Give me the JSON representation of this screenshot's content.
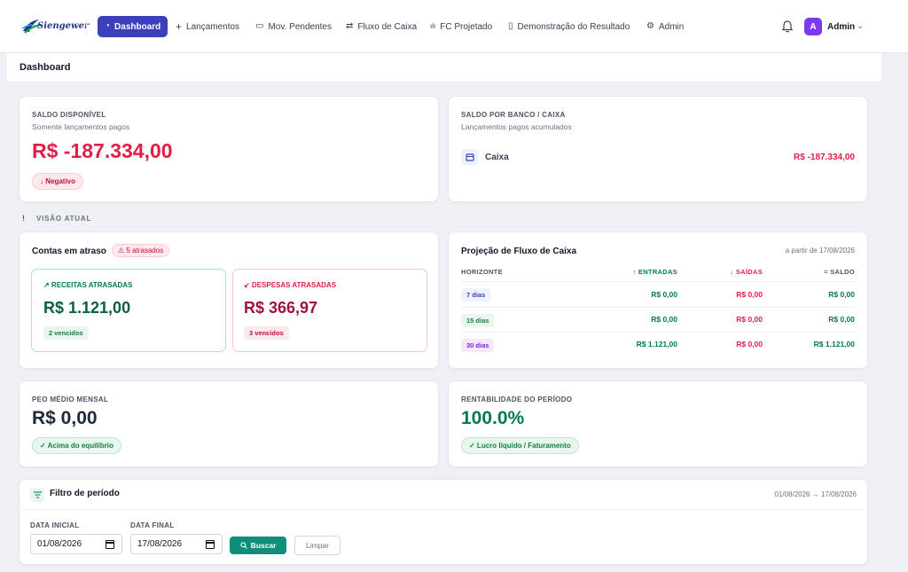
{
  "brand": {
    "name": "Siengewer"
  },
  "nav": {
    "items": [
      {
        "label": "Dashboard",
        "icon": "dashboard-icon",
        "glyph": "◔"
      },
      {
        "label": "Lançamentos",
        "icon": "plus-icon",
        "glyph": "+"
      },
      {
        "label": "Mov. Pendentes",
        "icon": "inbox-icon",
        "glyph": "▭"
      },
      {
        "label": "Fluxo de Caixa",
        "icon": "arrows-exchange-icon",
        "glyph": "⇄"
      },
      {
        "label": "FC Projetado",
        "icon": "bar-chart-icon",
        "glyph": "ılı"
      },
      {
        "label": "Demonstração do Resultado",
        "icon": "document-icon",
        "glyph": "▯"
      },
      {
        "label": "Admin",
        "icon": "gear-icon",
        "glyph": "⚙"
      }
    ],
    "user": {
      "initial": "A",
      "name": "Admin"
    }
  },
  "page": {
    "title": "Dashboard"
  },
  "saldo_disponivel": {
    "label": "SALDO DISPONÍVEL",
    "sub": "Somente lançamentos pagos",
    "value": "R$ -187.334,00",
    "badge": "↓ Negativo"
  },
  "saldo_banco": {
    "label": "SALDO POR BANCO / CAIXA",
    "sub": "Lançamentos pagos acumulados",
    "account": "Caixa",
    "value": "R$ -187.334,00"
  },
  "visao_atual": {
    "label": "VISÃO ATUAL",
    "mark": "!"
  },
  "contas_atraso": {
    "title": "Contas em atraso",
    "badge": "⚠ 5 atrasados",
    "receitas": {
      "label": "↗ RECEITAS ATRASADAS",
      "value": "R$ 1.121,00",
      "tag": "2 vencidos"
    },
    "despesas": {
      "label": "↙ DESPESAS ATRASADAS",
      "value": "R$ 366,97",
      "tag": "3 vencidos"
    }
  },
  "projecao": {
    "title": "Projeção de Fluxo de Caixa",
    "since": "a partir de 17/08/2026",
    "headers": {
      "horizonte": "HORIZONTE",
      "entradas": "↑ ENTRADAS",
      "saidas": "↓ SAÍDAS",
      "saldo": "= SALDO"
    },
    "rows": [
      {
        "horizonte": "7 dias",
        "entradas": "R$ 0,00",
        "saidas": "R$ 0,00",
        "saldo": "R$ 0,00"
      },
      {
        "horizonte": "15 dias",
        "entradas": "R$ 0,00",
        "saidas": "R$ 0,00",
        "saldo": "R$ 0,00"
      },
      {
        "horizonte": "30 dias",
        "entradas": "R$ 1.121,00",
        "saidas": "R$ 0,00",
        "saldo": "R$ 1.121,00"
      }
    ]
  },
  "peo": {
    "label": "PEO MÉDIO MENSAL",
    "value": "R$ 0,00",
    "badge": "✓ Acima do equilíbrio"
  },
  "rentabilidade": {
    "label": "RENTABILIDADE DO PERÍODO",
    "value": "100.0%",
    "badge": "✓ Lucro líquido / Faturamento"
  },
  "filtro": {
    "title": "Filtro de período",
    "range": "01/08/2026 → 17/08/2026",
    "data_inicial_label": "DATA INICIAL",
    "data_inicial": "01/08/2026",
    "data_final_label": "DATA FINAL",
    "data_final": "17/08/2026",
    "buscar": "Buscar",
    "limpar": "Limpar"
  },
  "colors": {
    "primary": "#3b3fb8",
    "negative": "#e11d48",
    "positive": "#047857",
    "despesas": "#9f1239",
    "teal_button": "#0f8f7a"
  }
}
